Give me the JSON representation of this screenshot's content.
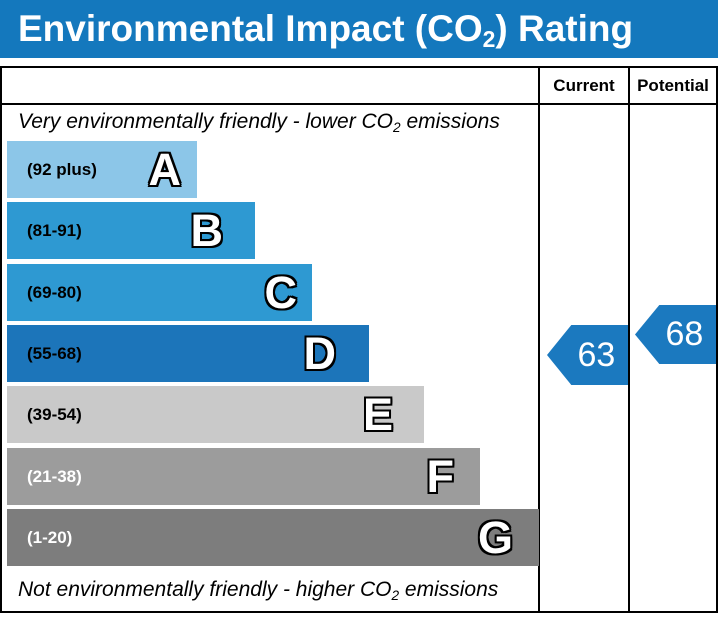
{
  "title": {
    "pre": "Environmental Impact (CO",
    "sub": "2",
    "post": ") Rating"
  },
  "header": {
    "current": "Current",
    "potential": "Potential"
  },
  "top_caption": {
    "pre": "Very environmentally friendly - lower CO",
    "sub": "2",
    "post": " emissions"
  },
  "bottom_caption": {
    "pre": "Not environmentally friendly - higher CO",
    "sub": "2",
    "post": " emissions"
  },
  "colors": {
    "title_bar": "#1478bd",
    "arrow": "#1b79bf",
    "border": "#000000",
    "band_a": "#8cc6e8",
    "band_b": "#2e99d2",
    "band_c": "#2e99d2",
    "band_d": "#1c75ba",
    "band_e": "#c9c9c9",
    "band_f": "#9c9c9c",
    "band_g": "#7d7d7d"
  },
  "bands": [
    {
      "letter": "A",
      "range": "(92 plus)"
    },
    {
      "letter": "B",
      "range": "(81-91)"
    },
    {
      "letter": "C",
      "range": "(69-80)"
    },
    {
      "letter": "D",
      "range": "(55-68)"
    },
    {
      "letter": "E",
      "range": "(39-54)"
    },
    {
      "letter": "F",
      "range": "(21-38)"
    },
    {
      "letter": "G",
      "range": "(1-20)"
    }
  ],
  "current": {
    "value": "63"
  },
  "potential": {
    "value": "68"
  },
  "chart_data": {
    "type": "bar",
    "title": "Environmental Impact (CO2) Rating",
    "columns": [
      "Current",
      "Potential"
    ],
    "categories": [
      "A",
      "B",
      "C",
      "D",
      "E",
      "F",
      "G"
    ],
    "band_ranges": [
      "92 plus",
      "81-91",
      "69-80",
      "55-68",
      "39-54",
      "21-38",
      "1-20"
    ],
    "band_colors": [
      "#8cc6e8",
      "#2e99d2",
      "#2e99d2",
      "#1c75ba",
      "#c9c9c9",
      "#9c9c9c",
      "#7d7d7d"
    ],
    "band_relative_widths": [
      190,
      248,
      305,
      362,
      417,
      473,
      532
    ],
    "current_value": 63,
    "current_band": "D",
    "potential_value": 68,
    "potential_band": "D",
    "top_annotation": "Very environmentally friendly - lower CO2 emissions",
    "bottom_annotation": "Not environmentally friendly - higher CO2 emissions",
    "scale": [
      1,
      100
    ]
  }
}
